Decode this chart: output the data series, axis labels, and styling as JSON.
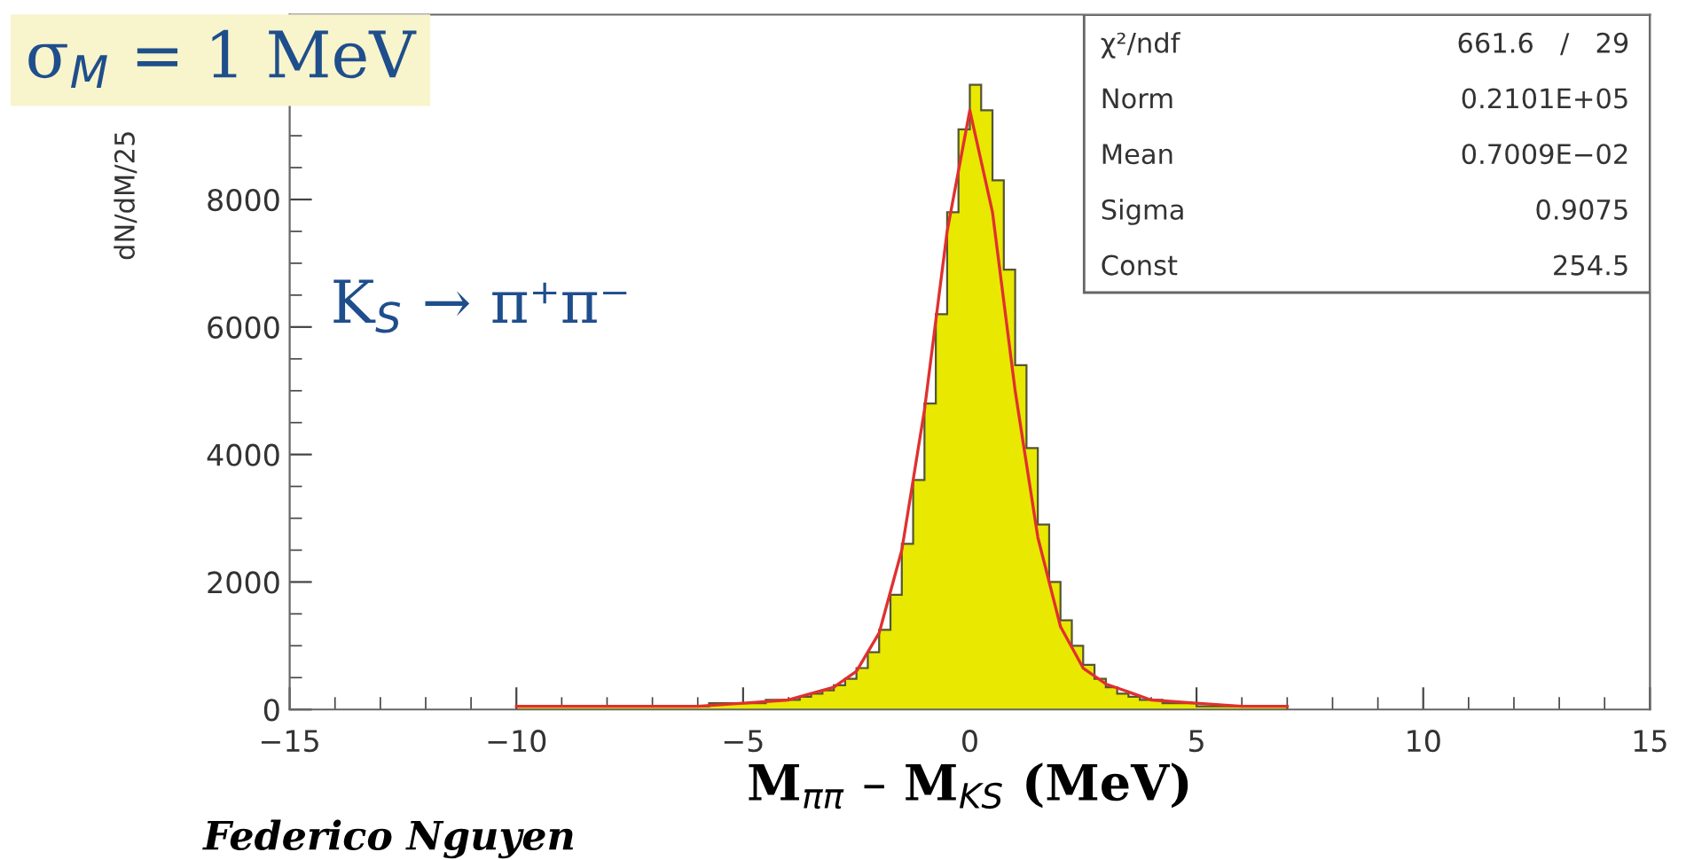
{
  "chart_data": {
    "type": "histogram",
    "xlabel": "M$_{ππ}$ – M$_{KS}$ (MeV)",
    "ylabel": "dN/dM/25",
    "bins": [
      -10,
      -9.75,
      -9.5,
      -9.25,
      -9,
      -8.75,
      -8.5,
      -8.25,
      -8,
      -7.75,
      -7.5,
      -7.25,
      -7,
      -6.75,
      -6.5,
      -6.25,
      -6,
      -5.75,
      -5.5,
      -5.25,
      -5,
      -4.75,
      -4.5,
      -4.25,
      -4,
      -3.75,
      -3.5,
      -3.25,
      -3,
      -2.75,
      -2.5,
      -2.25,
      -2,
      -1.75,
      -1.5,
      -1.25,
      -1,
      -0.75,
      -0.5,
      -0.25,
      0,
      0.25,
      0.5,
      0.75,
      1,
      1.25,
      1.5,
      1.75,
      2,
      2.25,
      2.5,
      2.75,
      3,
      3.25,
      3.5,
      3.75,
      4,
      4.25,
      4.5,
      4.75,
      5,
      5.25,
      5.5,
      5.75,
      6,
      6.25,
      6.5,
      6.75,
      7
    ],
    "series": [
      {
        "color": "#e8e800",
        "values": [
          50,
          50,
          50,
          50,
          50,
          50,
          50,
          50,
          50,
          50,
          50,
          50,
          50,
          50,
          50,
          50,
          50,
          100,
          100,
          100,
          100,
          100,
          150,
          150,
          150,
          200,
          250,
          300,
          380,
          480,
          650,
          900,
          1250,
          1800,
          2600,
          3600,
          4800,
          6200,
          7800,
          9100,
          9800,
          9400,
          8300,
          6900,
          5400,
          4100,
          2900,
          2000,
          1400,
          1000,
          700,
          480,
          350,
          250,
          200,
          150,
          150,
          100,
          100,
          100,
          50,
          50,
          50,
          50,
          50,
          50,
          50,
          50
        ]
      },
      {
        "type": "line",
        "color": "#e03030",
        "x": [
          -10,
          -8,
          -6,
          -5,
          -4,
          -3,
          -2.5,
          -2,
          -1.5,
          -1,
          -0.5,
          0,
          0.5,
          1,
          1.5,
          2,
          2.5,
          3,
          4,
          5,
          6,
          7
        ],
        "values": [
          50,
          50,
          50,
          100,
          150,
          350,
          600,
          1200,
          2500,
          4700,
          7500,
          9400,
          7800,
          5000,
          2700,
          1300,
          650,
          400,
          150,
          100,
          50,
          50
        ]
      }
    ],
    "xlim": [
      -15,
      15
    ],
    "xticks": [
      {
        "value": -15,
        "label": "−15"
      },
      {
        "value": -10,
        "label": "−10"
      },
      {
        "value": -5,
        "label": "−5"
      },
      0,
      5,
      10,
      15
    ],
    "ylim": [
      0,
      10900
    ],
    "yticks": [
      0,
      2000,
      4000,
      6000,
      8000
    ],
    "grid": false,
    "annotations": [
      "σ$_{M}$ = 1 MeV",
      "K$_{S}$ → π⁺π⁻",
      "χ²/ndf\t661.6   /   29",
      "Norm\t0.2101E+05",
      "Mean\t0.7009E−02",
      "Sigma\t0.9075",
      "Const\t254.5",
      "Federico Nguyen"
    ]
  }
}
